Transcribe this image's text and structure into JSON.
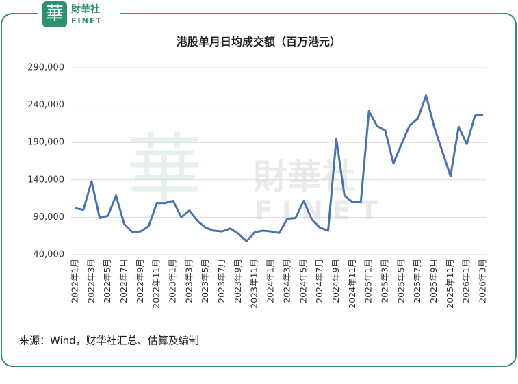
{
  "logo": {
    "mark": "華",
    "name": "財華社",
    "sub": "FINET"
  },
  "chart_data": {
    "type": "line",
    "title": "港股单月日均成交额（百万港元）",
    "categories": [
      "2022年1月",
      null,
      "2022年3月",
      null,
      "2022年5月",
      null,
      "2022年7月",
      null,
      "2022年9月",
      null,
      "2022年11月",
      null,
      "2023年1月",
      null,
      "2023年3月",
      null,
      "2023年5月",
      null,
      "2023年7月",
      null,
      "2023年9月",
      null,
      "2023年11月",
      null,
      "2024年1月",
      null,
      "2024年3月",
      null,
      "2024年5月",
      null,
      "2024年7月",
      null,
      "2024年9月",
      null,
      "2024年11月",
      null,
      "2025年1月",
      null,
      "2025年3月",
      null,
      "2025年5月",
      null,
      "2025年7月",
      null,
      "2025年9月",
      null,
      "2025年11月",
      null,
      "2026年1月",
      null,
      "2026年3月"
    ],
    "series": [
      {
        "name": "港股单月日均成交额",
        "color": "#4a72b0",
        "values": [
          102000,
          100000,
          138000,
          89000,
          92000,
          119000,
          81000,
          70000,
          71000,
          78000,
          109000,
          109000,
          112000,
          90000,
          99000,
          85000,
          76000,
          72000,
          71000,
          75000,
          68000,
          58000,
          70000,
          72000,
          71000,
          69000,
          88000,
          89000,
          112000,
          87000,
          76000,
          72000,
          195000,
          119000,
          110000,
          110000,
          232000,
          212000,
          206000,
          162000,
          188000,
          213000,
          222000,
          253000,
          211000,
          178000,
          145000,
          211000,
          188000,
          226000,
          227000
        ]
      }
    ],
    "ylim": [
      40000,
      290000
    ],
    "yticks": [
      {
        "value": 40000,
        "label": "40,000"
      },
      {
        "value": 90000,
        "label": "90,000"
      },
      {
        "value": 140000,
        "label": "140,000"
      },
      {
        "value": 190000,
        "label": "190,000"
      },
      {
        "value": 240000,
        "label": "240,000"
      },
      {
        "value": 290000,
        "label": "290,000"
      }
    ],
    "grid": true,
    "source": "来源：Wind，财华社汇总、估算及编制"
  }
}
